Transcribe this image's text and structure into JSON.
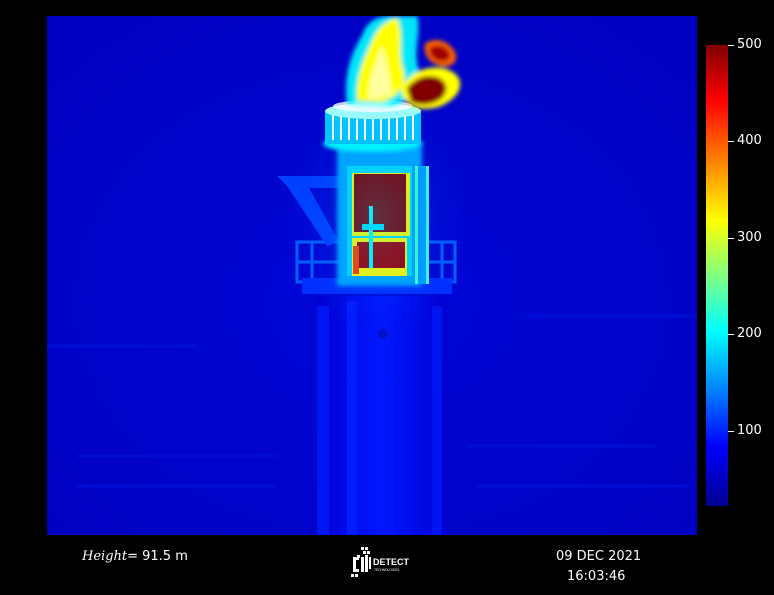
{
  "colorbar": {
    "ticks": [
      "500",
      "400",
      "300",
      "200",
      "100"
    ],
    "tick_values": [
      500,
      400,
      300,
      200,
      100
    ],
    "range": [
      20,
      500
    ],
    "colormap": "jet"
  },
  "footer": {
    "height_label": "Height",
    "height_value": "= 91.5 m",
    "date": "09 DEC 2021",
    "time": "16:03:46"
  },
  "logo": {
    "name": "detect-technologies-logo",
    "text": "DETECT",
    "subtext": "TECHNOLOGIES"
  },
  "colors": {
    "background": "#000000",
    "cold": "#0000c8",
    "hot": "#800000"
  }
}
